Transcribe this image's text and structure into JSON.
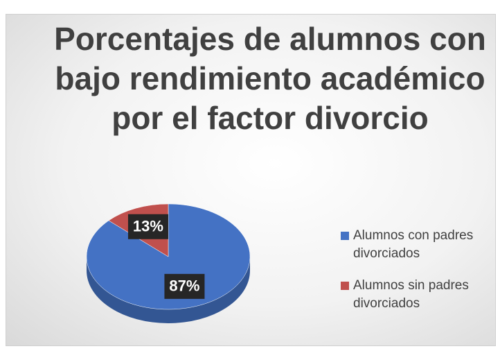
{
  "chart_data": {
    "type": "pie",
    "title": "Porcentajes de alumnos con bajo rendimiento académico por el factor divorcio",
    "categories": [
      "Alumnos con padres divorciados",
      "Alumnos sin padres divorciados"
    ],
    "values": [
      87,
      13
    ],
    "value_labels": [
      "87%",
      "13%"
    ],
    "colors": [
      "#4472c4",
      "#c0504d"
    ],
    "legend": "right"
  }
}
